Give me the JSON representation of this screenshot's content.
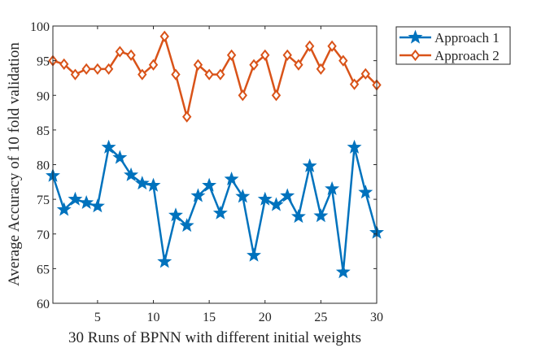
{
  "chart_data": {
    "type": "line",
    "xlabel": "30 Runs of BPNN with different initial weights",
    "ylabel": "Average Accuracy of 10 fold validation",
    "xlim": [
      1,
      30
    ],
    "ylim": [
      60,
      100
    ],
    "xticks": [
      5,
      10,
      15,
      20,
      25,
      30
    ],
    "yticks": [
      60,
      65,
      70,
      75,
      80,
      85,
      90,
      95,
      100
    ],
    "grid": false,
    "legend_position": "outside-top-right",
    "x": [
      1,
      2,
      3,
      4,
      5,
      6,
      7,
      8,
      9,
      10,
      11,
      12,
      13,
      14,
      15,
      16,
      17,
      18,
      19,
      20,
      21,
      22,
      23,
      24,
      25,
      26,
      27,
      28,
      29,
      30
    ],
    "series": [
      {
        "name": "Approach 1",
        "color": "#0072BD",
        "marker": "star",
        "values": [
          78.4,
          73.5,
          75.0,
          74.5,
          74.0,
          82.5,
          81.0,
          78.5,
          77.3,
          77.0,
          66.0,
          72.7,
          71.2,
          75.5,
          77.0,
          73.0,
          77.9,
          75.4,
          66.9,
          75.0,
          74.2,
          75.5,
          72.5,
          79.8,
          72.6,
          76.5,
          64.5,
          82.5,
          76.0,
          70.2
        ]
      },
      {
        "name": "Approach 2",
        "color": "#D95319",
        "marker": "diamond",
        "values": [
          95.0,
          94.5,
          93.0,
          93.8,
          93.8,
          93.8,
          96.3,
          95.8,
          93.0,
          94.4,
          98.5,
          93.0,
          86.9,
          94.4,
          93.0,
          93.0,
          95.8,
          90.0,
          94.4,
          95.8,
          90.0,
          95.8,
          94.4,
          97.1,
          93.8,
          97.1,
          95.0,
          91.6,
          93.1,
          91.5
        ]
      }
    ]
  }
}
